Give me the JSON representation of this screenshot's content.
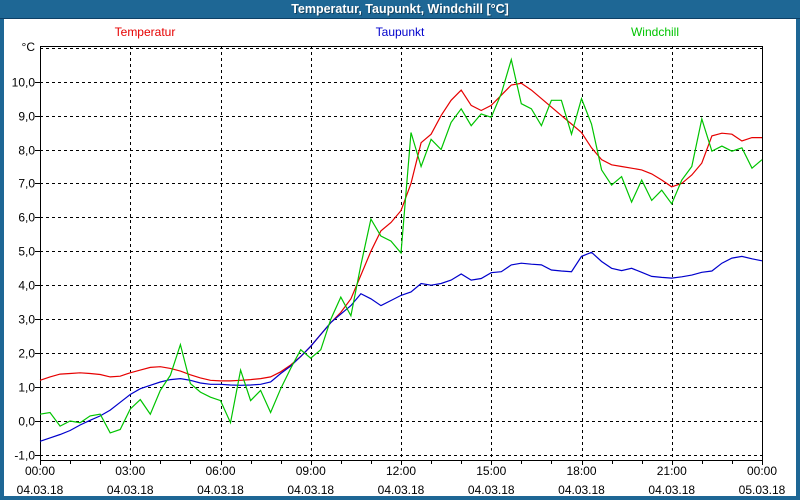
{
  "window": {
    "title": "Temperatur, Taupunkt, Windchill [°C]",
    "titlebar_color": "#1e6795",
    "frame_color": "#1e6795"
  },
  "chart_data": {
    "type": "line",
    "title": "Temperatur, Taupunkt, Windchill [°C]",
    "unit_label": "°C",
    "grid": "dashed",
    "legend_position": "top",
    "x_axis": {
      "start_hour": 0,
      "end_hour": 24,
      "major_tick_hours": 3,
      "minor_tick_hours": 1,
      "ticks": [
        {
          "hour": 0,
          "time": "00:00",
          "date": "04.03.18"
        },
        {
          "hour": 3,
          "time": "03:00",
          "date": "04.03.18"
        },
        {
          "hour": 6,
          "time": "06:00",
          "date": "04.03.18"
        },
        {
          "hour": 9,
          "time": "09:00",
          "date": "04.03.18"
        },
        {
          "hour": 12,
          "time": "12:00",
          "date": "04.03.18"
        },
        {
          "hour": 15,
          "time": "15:00",
          "date": "04.03.18"
        },
        {
          "hour": 18,
          "time": "18:00",
          "date": "04.03.18"
        },
        {
          "hour": 21,
          "time": "21:00",
          "date": "04.03.18"
        },
        {
          "hour": 24,
          "time": "00:00",
          "date": "05.03.18"
        }
      ]
    },
    "y_axis": {
      "min": -1.15,
      "max": 11.05,
      "grid_values": [
        -1,
        0,
        1,
        2,
        3,
        4,
        5,
        6,
        7,
        8,
        9,
        10,
        11
      ],
      "tick_labels": [
        {
          "value": 10,
          "label": "10,0"
        },
        {
          "value": 9,
          "label": "9,0"
        },
        {
          "value": 8,
          "label": "8,0"
        },
        {
          "value": 7,
          "label": "7,0"
        },
        {
          "value": 6,
          "label": "6,0"
        },
        {
          "value": 5,
          "label": "5,0"
        },
        {
          "value": 4,
          "label": "4,0"
        },
        {
          "value": 3,
          "label": "3,0"
        },
        {
          "value": 2,
          "label": "2,0"
        },
        {
          "value": 1,
          "label": "1,0"
        },
        {
          "value": 0,
          "label": "0,0"
        },
        {
          "value": -1,
          "label": "-1,0"
        }
      ]
    },
    "sample_step_hours": 0.333333,
    "series": [
      {
        "name": "Temperatur",
        "color": "#e60000",
        "values": [
          1.2,
          1.3,
          1.38,
          1.4,
          1.42,
          1.4,
          1.37,
          1.3,
          1.32,
          1.42,
          1.5,
          1.58,
          1.6,
          1.55,
          1.47,
          1.36,
          1.27,
          1.2,
          1.18,
          1.18,
          1.2,
          1.22,
          1.25,
          1.3,
          1.45,
          1.65,
          1.9,
          2.2,
          2.55,
          2.9,
          3.2,
          3.6,
          4.3,
          5.0,
          5.6,
          5.85,
          6.2,
          7.0,
          8.2,
          8.45,
          9.0,
          9.45,
          9.75,
          9.3,
          9.15,
          9.3,
          9.6,
          9.9,
          9.95,
          9.75,
          9.5,
          9.25,
          9.0,
          8.75,
          8.5,
          8.05,
          7.7,
          7.55,
          7.5,
          7.45,
          7.4,
          7.28,
          7.1,
          6.9,
          7.0,
          7.25,
          7.6,
          8.4,
          8.48,
          8.45,
          8.25,
          8.35,
          8.35
        ]
      },
      {
        "name": "Taupunkt",
        "color": "#0000cc",
        "values": [
          -0.6,
          -0.5,
          -0.4,
          -0.28,
          -0.12,
          0.02,
          0.15,
          0.32,
          0.55,
          0.78,
          0.95,
          1.05,
          1.15,
          1.22,
          1.25,
          1.2,
          1.12,
          1.08,
          1.08,
          1.06,
          1.05,
          1.06,
          1.08,
          1.15,
          1.4,
          1.62,
          1.9,
          2.2,
          2.55,
          2.9,
          3.15,
          3.4,
          3.75,
          3.6,
          3.4,
          3.55,
          3.7,
          3.8,
          4.05,
          4.0,
          4.05,
          4.15,
          4.33,
          4.15,
          4.2,
          4.37,
          4.4,
          4.6,
          4.65,
          4.62,
          4.6,
          4.45,
          4.42,
          4.4,
          4.85,
          4.97,
          4.7,
          4.5,
          4.43,
          4.5,
          4.38,
          4.26,
          4.23,
          4.21,
          4.25,
          4.3,
          4.38,
          4.42,
          4.65,
          4.8,
          4.85,
          4.78,
          4.72
        ]
      },
      {
        "name": "Windchill",
        "color": "#00c400",
        "values": [
          0.2,
          0.25,
          -0.15,
          0.0,
          -0.05,
          0.15,
          0.2,
          -0.35,
          -0.25,
          0.35,
          0.63,
          0.2,
          0.9,
          1.35,
          2.25,
          1.1,
          0.85,
          0.7,
          0.6,
          -0.05,
          1.5,
          0.6,
          0.9,
          0.25,
          0.95,
          1.55,
          2.1,
          1.85,
          2.1,
          3.0,
          3.65,
          3.1,
          4.6,
          5.95,
          5.45,
          5.3,
          4.95,
          8.5,
          7.5,
          8.3,
          8.0,
          8.8,
          9.2,
          8.7,
          9.05,
          8.95,
          9.65,
          10.65,
          9.35,
          9.2,
          8.7,
          9.45,
          9.45,
          8.45,
          9.5,
          8.75,
          7.4,
          6.95,
          7.2,
          6.45,
          7.1,
          6.5,
          6.8,
          6.4,
          7.1,
          7.5,
          8.9,
          7.95,
          8.1,
          7.95,
          8.05,
          7.45,
          7.7
        ]
      }
    ]
  }
}
